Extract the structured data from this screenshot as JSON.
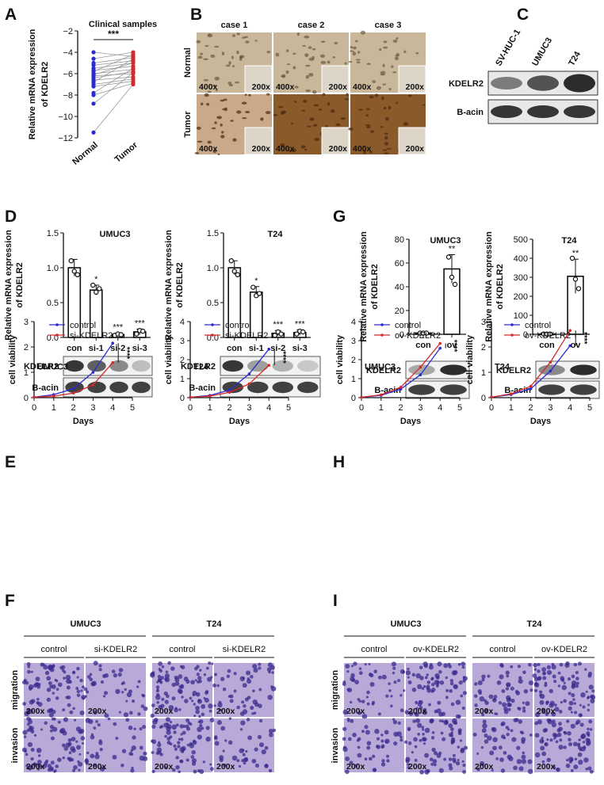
{
  "colors": {
    "blue": "#2a2ad0",
    "red": "#d42a2a",
    "axis": "#111111",
    "ihc_normal": "#c9b79a",
    "ihc_tumor": "#8b5a2b",
    "blot": "#222222",
    "crystal_dark": "#3a2a8c",
    "crystal_light": "#b9a9d8"
  },
  "panels": {
    "A": {
      "letter": "A"
    },
    "B": {
      "letter": "B"
    },
    "C": {
      "letter": "C"
    },
    "D": {
      "letter": "D"
    },
    "E": {
      "letter": "E"
    },
    "F": {
      "letter": "F"
    },
    "G": {
      "letter": "G"
    },
    "H": {
      "letter": "H"
    },
    "I": {
      "letter": "I"
    }
  },
  "panelB": {
    "cases": [
      "case 1",
      "case 2",
      "case 3"
    ],
    "rows": [
      "Normal",
      "Tumor"
    ],
    "mag_main": "400x",
    "mag_inset": "200x"
  },
  "panelC": {
    "lanes": [
      "SV-HUC-1",
      "UMUC3",
      "T24"
    ],
    "bands": [
      "KDELR2",
      "B-acin"
    ],
    "intensity": [
      0.55,
      0.75,
      0.95
    ]
  },
  "blots": {
    "D_UMUC3": {
      "rows": [
        "KDELR2",
        "B-acin"
      ],
      "kdelr2": [
        0.9,
        0.7,
        0.5,
        0.25
      ]
    },
    "D_T24": {
      "rows": [
        "KDELR2",
        "B-acin"
      ],
      "kdelr2": [
        0.9,
        0.4,
        0.3,
        0.2
      ]
    },
    "G_UMUC3": {
      "rows": [
        "KDELR2",
        "B-acin"
      ],
      "kdelr2": [
        0.35,
        0.95
      ]
    },
    "G_T24": {
      "rows": [
        "KDELR2",
        "B-acin"
      ],
      "kdelr2": [
        0.5,
        0.95
      ]
    }
  },
  "panelF": {
    "cells": [
      "UMUC3",
      "T24"
    ],
    "conditions": [
      "control",
      "si-KDELR2"
    ],
    "rows": [
      "migration",
      "invasion"
    ],
    "mag": "200x"
  },
  "panelI": {
    "cells": [
      "UMUC3",
      "T24"
    ],
    "conditions": [
      "control",
      "ov-KDELR2"
    ],
    "rows": [
      "migration",
      "invasion"
    ],
    "mag": "200x"
  },
  "chart_data": [
    {
      "id": "A",
      "type": "scatter",
      "title": "Clinical samples",
      "categories": [
        "Normal",
        "Tumor"
      ],
      "ylabel": "Relative mRNA expression of KDELR2",
      "ylim": [
        -12,
        -2
      ],
      "yticks": [
        -2,
        -4,
        -6,
        -8,
        -10,
        -12
      ],
      "annotations": [
        "***"
      ],
      "pairs": [
        [
          -4,
          -4.4
        ],
        [
          -4.6,
          -4
        ],
        [
          -5,
          -4.5
        ],
        [
          -5.2,
          -4.8
        ],
        [
          -5.5,
          -5
        ],
        [
          -5.7,
          -5.3
        ],
        [
          -5.8,
          -4.2
        ],
        [
          -6,
          -5.6
        ],
        [
          -6.1,
          -5
        ],
        [
          -6.2,
          -6
        ],
        [
          -6.4,
          -5.8
        ],
        [
          -6.6,
          -6.3
        ],
        [
          -6.8,
          -4.6
        ],
        [
          -7,
          -6.5
        ],
        [
          -7.2,
          -6.7
        ],
        [
          -7.8,
          -5.5
        ],
        [
          -8,
          -6.9
        ],
        [
          -8.8,
          -5.9
        ],
        [
          -11.5,
          -7
        ]
      ]
    },
    {
      "id": "D_UMUC3",
      "type": "bar",
      "title": "UMUC3",
      "categories": [
        "con",
        "si-1",
        "si-2",
        "si-3"
      ],
      "values": [
        1.0,
        0.68,
        0.04,
        0.08
      ],
      "points": [
        [
          1.1,
          0.95,
          0.9
        ],
        [
          0.75,
          0.65,
          0.7
        ],
        [
          0.03,
          0.05,
          0.04
        ],
        [
          0.05,
          0.1,
          0.09
        ]
      ],
      "errors": [
        0.12,
        0.07,
        0.02,
        0.04
      ],
      "significance": [
        "",
        "*",
        "***",
        "***"
      ],
      "ylabel": "Relative mRNA expression of KDELR2",
      "ylim": [
        0,
        1.5
      ],
      "yticks": [
        "0.0",
        "0.5",
        "1.0",
        "1.5"
      ]
    },
    {
      "id": "D_T24",
      "type": "bar",
      "title": "T24",
      "categories": [
        "con",
        "si-1",
        "si-2",
        "si-3"
      ],
      "values": [
        1.0,
        0.65,
        0.06,
        0.07
      ],
      "points": [
        [
          1.1,
          0.95,
          0.9
        ],
        [
          0.72,
          0.6,
          0.63
        ],
        [
          0.03,
          0.08,
          0.05
        ],
        [
          0.05,
          0.09,
          0.08
        ]
      ],
      "errors": [
        0.1,
        0.08,
        0.04,
        0.04
      ],
      "significance": [
        "",
        "*",
        "***",
        "***"
      ],
      "ylabel": "Relative mRNA expression of KDELR2",
      "ylim": [
        0,
        1.5
      ],
      "yticks": [
        "0.0",
        "0.5",
        "1.0",
        "1.5"
      ]
    },
    {
      "id": "G_UMUC3",
      "type": "bar",
      "title": "UMUC3",
      "categories": [
        "con",
        "ov"
      ],
      "values": [
        1,
        55
      ],
      "points": [
        [
          1,
          1,
          1
        ],
        [
          65,
          48,
          42
        ]
      ],
      "errors": [
        0.5,
        12
      ],
      "significance": [
        "",
        "**"
      ],
      "ylabel": "Relative mRNA expression of KDELR2",
      "ylim": [
        0,
        80
      ],
      "yticks": [
        "0",
        "20",
        "40",
        "60",
        "80"
      ]
    },
    {
      "id": "G_T24",
      "type": "bar",
      "title": "T24",
      "categories": [
        "con",
        "ov"
      ],
      "values": [
        1,
        305
      ],
      "points": [
        [
          1,
          1,
          1
        ],
        [
          400,
          290,
          240
        ]
      ],
      "errors": [
        3,
        90
      ],
      "significance": [
        "",
        "**"
      ],
      "ylabel": "Relative mRNA expression of KDELR2",
      "ylim": [
        0,
        500
      ],
      "yticks": [
        "0",
        "100",
        "200",
        "300",
        "400",
        "500"
      ]
    },
    {
      "id": "E_UMUC3",
      "type": "line",
      "label": "UMUC3",
      "xlabel": "Days",
      "ylabel": "cell viability",
      "xlim": [
        0,
        5
      ],
      "ylim": [
        0,
        3
      ],
      "xticks": [
        0,
        1,
        2,
        3,
        4,
        5
      ],
      "yticks": [
        0,
        1,
        2,
        3
      ],
      "x": [
        0,
        1,
        2,
        3,
        4
      ],
      "series": [
        {
          "name": "control",
          "color": "blue",
          "values": [
            0.02,
            0.12,
            0.35,
            1.0,
            2.15
          ]
        },
        {
          "name": "si-KDELR2",
          "color": "red",
          "values": [
            0.02,
            0.06,
            0.18,
            0.5,
            1.38
          ]
        }
      ],
      "significance": "****"
    },
    {
      "id": "E_T24",
      "type": "line",
      "label": "T24",
      "xlabel": "Days",
      "ylabel": "cell viability",
      "xlim": [
        0,
        5
      ],
      "ylim": [
        0,
        4
      ],
      "xticks": [
        0,
        1,
        2,
        3,
        4,
        5
      ],
      "yticks": [
        0,
        1,
        2,
        3,
        4
      ],
      "x": [
        0,
        1,
        2,
        3,
        4
      ],
      "series": [
        {
          "name": "control",
          "color": "blue",
          "values": [
            0.02,
            0.12,
            0.4,
            1.25,
            2.55
          ]
        },
        {
          "name": "si-KDELR2",
          "color": "red",
          "values": [
            0.02,
            0.08,
            0.28,
            0.72,
            1.7
          ]
        }
      ],
      "significance": "****"
    },
    {
      "id": "H_UMUC3",
      "type": "line",
      "label": "UMUC3",
      "xlabel": "Days",
      "ylabel": "cell viability",
      "xlim": [
        0,
        5
      ],
      "ylim": [
        0,
        4
      ],
      "xticks": [
        0,
        1,
        2,
        3,
        4,
        5
      ],
      "yticks": [
        0,
        1,
        2,
        3,
        4
      ],
      "x": [
        0,
        1,
        2,
        3,
        4
      ],
      "series": [
        {
          "name": "control",
          "color": "blue",
          "values": [
            0.02,
            0.12,
            0.45,
            1.2,
            2.6
          ]
        },
        {
          "name": "ov-KDELR2",
          "color": "red",
          "values": [
            0.02,
            0.15,
            0.55,
            1.6,
            2.85
          ]
        }
      ],
      "significance": "****"
    },
    {
      "id": "H_T24",
      "type": "line",
      "label": "T24",
      "xlabel": "Days",
      "ylabel": "cell viability",
      "xlim": [
        0,
        5
      ],
      "ylim": [
        0,
        3
      ],
      "xticks": [
        0,
        1,
        2,
        3,
        4,
        5
      ],
      "yticks": [
        0,
        1,
        2,
        3
      ],
      "x": [
        0,
        1,
        2,
        3,
        4
      ],
      "series": [
        {
          "name": "control",
          "color": "blue",
          "values": [
            0.02,
            0.12,
            0.35,
            1.05,
            2.05
          ]
        },
        {
          "name": "ov-KDELR2",
          "color": "red",
          "values": [
            0.02,
            0.15,
            0.45,
            1.4,
            2.65
          ]
        }
      ],
      "significance": "****"
    }
  ]
}
